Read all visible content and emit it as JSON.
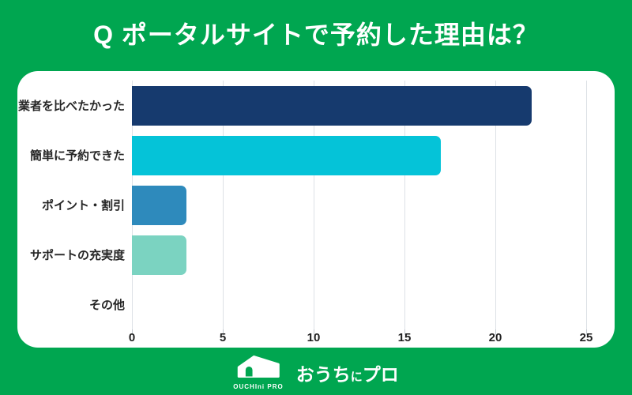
{
  "chart_data": {
    "type": "bar",
    "orientation": "horizontal",
    "title": "Q ポータルサイトで予約した理由は？",
    "categories": [
      "業者を比べたかった",
      "簡単に予約できた",
      "ポイント・割引",
      "サポートの充実度",
      "その他"
    ],
    "values": [
      22,
      17,
      3,
      3,
      0
    ],
    "bar_colors": [
      "#163a6e",
      "#05c3d8",
      "#2e8abc",
      "#7bd3c1",
      "#7bd3c1"
    ],
    "xlabel": "",
    "ylabel": "",
    "xlim": [
      0,
      25
    ],
    "xticks": [
      0,
      5,
      10,
      15,
      20,
      25
    ],
    "grid": true,
    "legend": null
  },
  "footer": {
    "logo_wordmark": "OUCHIni PRO",
    "logo_text_ouchi": "おうち",
    "logo_text_ni": "に",
    "logo_text_pro": "プロ"
  },
  "colors": {
    "background_green": "#00a650",
    "panel_white": "#ffffff",
    "title_text": "#ffffff",
    "label_text": "#262626",
    "gridline": "#dde1e6",
    "bar_navy": "#163a6e",
    "bar_cyan": "#05c3d8",
    "bar_blue": "#2e8abc",
    "bar_mint": "#7bd3c1"
  }
}
